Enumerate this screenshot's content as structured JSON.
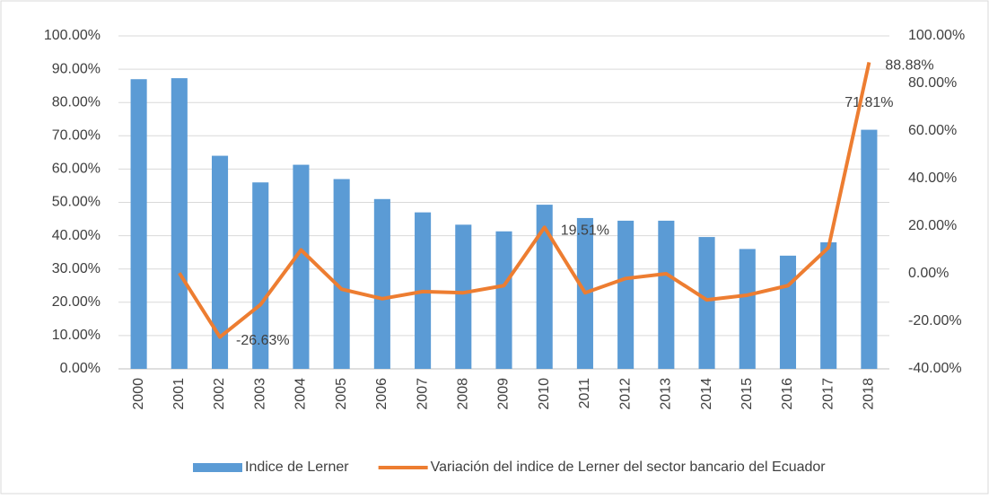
{
  "chart_data": {
    "type": "bar_line",
    "categories": [
      "2000",
      "2001",
      "2002",
      "2003",
      "2004",
      "2005",
      "2006",
      "2007",
      "2008",
      "2009",
      "2010",
      "2011",
      "2012",
      "2013",
      "2014",
      "2015",
      "2016",
      "2017",
      "2018"
    ],
    "series": [
      {
        "name": "Indice de Lerner",
        "type": "bar",
        "color": "#5b9bd5",
        "axis": "y",
        "values": [
          87,
          87.3,
          64,
          56,
          61.3,
          57,
          51,
          47,
          43.3,
          41.3,
          49.3,
          45.3,
          44.5,
          44.5,
          39.6,
          36,
          34,
          38,
          71.81
        ],
        "value_labels": [
          null,
          null,
          null,
          null,
          null,
          null,
          null,
          null,
          null,
          null,
          null,
          null,
          null,
          null,
          null,
          null,
          null,
          null,
          "71.81%"
        ]
      },
      {
        "name": "Variación del indice de Lerner del sector bancario del Ecuador",
        "type": "line",
        "color": "#ed7d31",
        "axis": "y2",
        "values": [
          null,
          0.3,
          -26.63,
          -13,
          10,
          -6.5,
          -10.5,
          -7.5,
          -8,
          -5,
          19.51,
          -8,
          -2,
          0,
          -11,
          -9,
          -5,
          11,
          88.88
        ],
        "value_labels": [
          null,
          null,
          "-26.63%",
          null,
          null,
          null,
          null,
          null,
          null,
          null,
          "19.51%",
          null,
          null,
          null,
          null,
          null,
          null,
          null,
          "88.88%"
        ]
      }
    ],
    "ylim": [
      0,
      100
    ],
    "yticks": [
      {
        "value": 0,
        "label": "0.00%"
      },
      {
        "value": 10,
        "label": "10.00%"
      },
      {
        "value": 20,
        "label": "20.00%"
      },
      {
        "value": 30,
        "label": "30.00%"
      },
      {
        "value": 40,
        "label": "40.00%"
      },
      {
        "value": 50,
        "label": "50.00%"
      },
      {
        "value": 60,
        "label": "60.00%"
      },
      {
        "value": 70,
        "label": "70.00%"
      },
      {
        "value": 80,
        "label": "80.00%"
      },
      {
        "value": 90,
        "label": "90.00%"
      },
      {
        "value": 100,
        "label": "100.00%"
      }
    ],
    "y2lim": [
      -40,
      100
    ],
    "y2ticks": [
      {
        "value": -40,
        "label": "-40.00%"
      },
      {
        "value": -20,
        "label": "-20.00%"
      },
      {
        "value": 0,
        "label": "0.00%"
      },
      {
        "value": 20,
        "label": "20.00%"
      },
      {
        "value": 40,
        "label": "40.00%"
      },
      {
        "value": 60,
        "label": "60.00%"
      },
      {
        "value": 80,
        "label": "80.00%"
      },
      {
        "value": 100,
        "label": "100.00%"
      }
    ],
    "grid": true,
    "legend": "bottom"
  }
}
